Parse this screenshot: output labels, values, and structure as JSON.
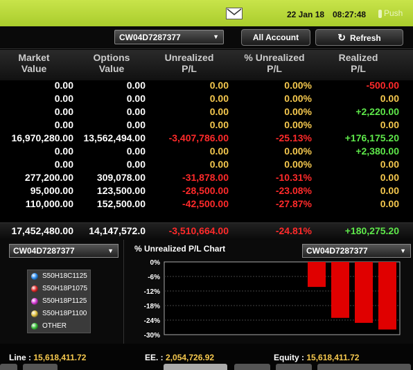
{
  "topbar": {
    "date": "22 Jan 18",
    "time": "08:27:48",
    "push_label": "Push"
  },
  "controls": {
    "account": "CW04D7287377",
    "all_account_label": "All Account",
    "refresh_label": "Refresh"
  },
  "columns": [
    {
      "line1": "Market",
      "line2": "Value"
    },
    {
      "line1": "Options",
      "line2": "Value"
    },
    {
      "line1": "Unrealized",
      "line2": "P/L"
    },
    {
      "line1": "% Unrealized",
      "line2": "P/L"
    },
    {
      "line1": "Realized",
      "line2": "P/L"
    }
  ],
  "rows": [
    [
      "0.00",
      "0.00",
      "0.00",
      "0.00%",
      "-500.00"
    ],
    [
      "0.00",
      "0.00",
      "0.00",
      "0.00%",
      "0.00"
    ],
    [
      "0.00",
      "0.00",
      "0.00",
      "0.00%",
      "+2,220.00"
    ],
    [
      "0.00",
      "0.00",
      "0.00",
      "0.00%",
      "0.00"
    ],
    [
      "16,970,280.00",
      "13,562,494.00",
      "-3,407,786.00",
      "-25.13%",
      "+176,175.20"
    ],
    [
      "0.00",
      "0.00",
      "0.00",
      "0.00%",
      "+2,380.00"
    ],
    [
      "0.00",
      "0.00",
      "0.00",
      "0.00%",
      "0.00"
    ],
    [
      "277,200.00",
      "309,078.00",
      "-31,878.00",
      "-10.31%",
      "0.00"
    ],
    [
      "95,000.00",
      "123,500.00",
      "-28,500.00",
      "-23.08%",
      "0.00"
    ],
    [
      "110,000.00",
      "152,500.00",
      "-42,500.00",
      "-27.87%",
      "0.00"
    ]
  ],
  "totals": [
    "17,452,480.00",
    "14,147,572.0",
    "-3,510,664.00",
    "-24.81%",
    "+180,275.20"
  ],
  "colors": {
    "yellow": "#f5c84e",
    "red": "#ff2a2a",
    "green": "#5ee84a",
    "white": "#ffffff"
  },
  "left_panel": {
    "account": "CW04D7287377",
    "legend": [
      {
        "label": "S50H18C1125",
        "color": "#2a8cf0"
      },
      {
        "label": "S50H18P1075",
        "color": "#e02a2a"
      },
      {
        "label": "S50H18P1125",
        "color": "#d63ad6"
      },
      {
        "label": "S50H18P1100",
        "color": "#e0c040"
      },
      {
        "label": "OTHER",
        "color": "#3ac03a"
      }
    ]
  },
  "chart_panel": {
    "title": "% Unrealized P/L Chart",
    "account": "CW04D7287377"
  },
  "chart_data": {
    "type": "bar",
    "title": "% Unrealized P/L Chart",
    "yticks": [
      "0%",
      "-6%",
      "-12%",
      "-18%",
      "-24%",
      "-30%"
    ],
    "ylim": [
      -30,
      0
    ],
    "values": [
      -10.31,
      -23.08,
      -25.13,
      -27.87
    ],
    "bar_color": "#e00000"
  },
  "footer": {
    "line_label": "Line :",
    "line_value": "15,618,411.72",
    "ee_label": "EE. :",
    "ee_value": "2,054,726.92",
    "equity_label": "Equity :",
    "equity_value": "15,618,411.72"
  }
}
